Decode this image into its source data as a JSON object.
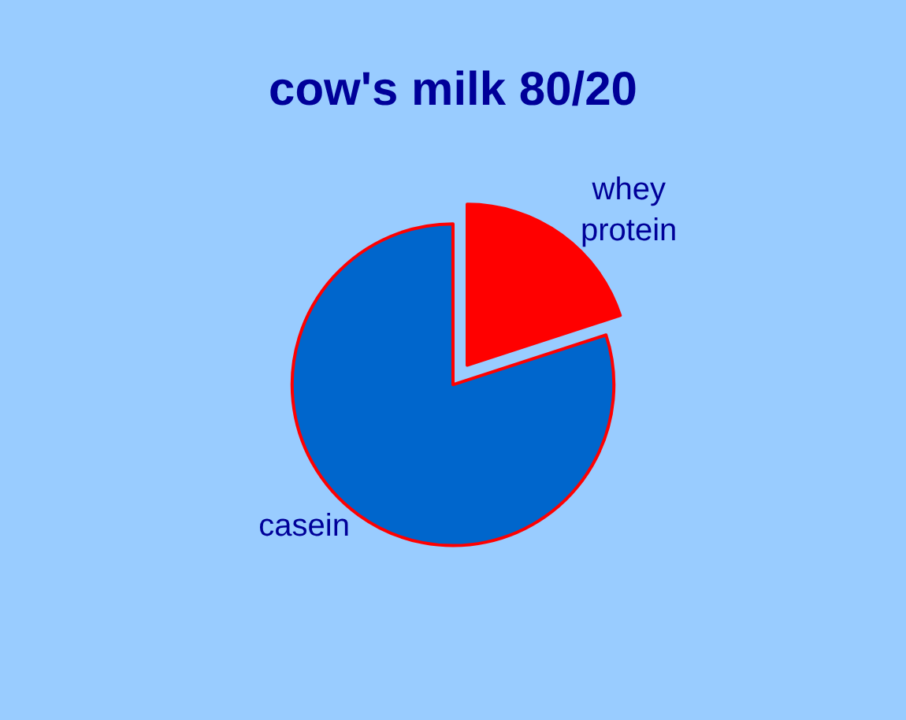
{
  "chart_data": {
    "type": "pie",
    "title": "cow's milk 80/20",
    "categories": [
      "whey protein",
      "casein"
    ],
    "values": [
      20,
      80
    ],
    "colors": [
      "#ff0000",
      "#0066cc"
    ]
  }
}
